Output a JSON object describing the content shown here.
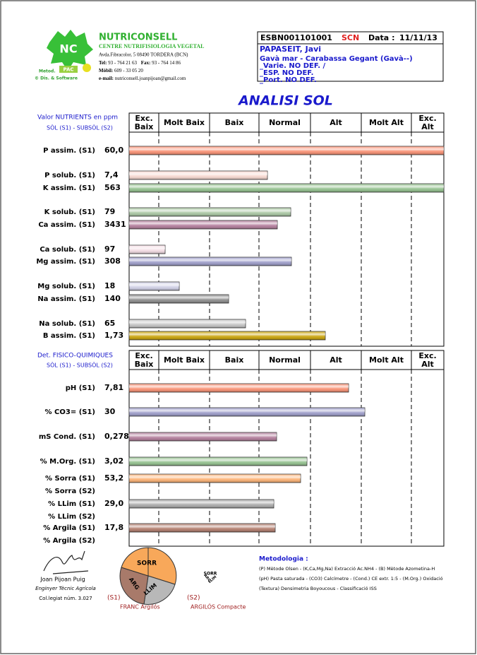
{
  "header": {
    "logo_mark": "NC",
    "logo_metod": "Metod.",
    "logo_pac": "PAC",
    "logo_copyright": "© Dis. & Software",
    "company": "NUTRICONSELL",
    "subtitle": "CENTRE NUTRIFISIOLOGIA VEGETAL",
    "address": "Avda.Fibracolor, 5  08490 TORDERA (BCN)",
    "tel_label": "Tel:",
    "tel": "93 - 764 21 63",
    "fax_label": "Fax:",
    "fax": "93 - 764 14 86",
    "mobile_label": "Mòbil:",
    "mobile": "609 - 33 05 20",
    "email_label": "e-mail:",
    "email": "nutriconsell.joanpijoan@gmail.com"
  },
  "report": {
    "code": "ESBN001101001",
    "scn": "SCN",
    "date_label": "Data :",
    "date": "11/11/13",
    "client": "PAPASEIT, Javi",
    "lines": [
      "Gavà mar - Carabassa Gegant (Gavà--)",
      "_Varie. NO DEF. /",
      "_ESP. NO DEF.",
      "_Port. NO DEF."
    ]
  },
  "title": "ANALISI SOL",
  "nutrients": {
    "heading": "Valor NUTRIENTS en ppm",
    "subheading": "SÒL (S1) - SUBSÒL (S2)",
    "columns": [
      [
        "Exc.",
        "Baix"
      ],
      [
        "Molt Baix"
      ],
      [
        "Baix"
      ],
      [
        "Normal"
      ],
      [
        "Alt"
      ],
      [
        "Molt Alt"
      ],
      [
        "Exc.",
        "Alt"
      ]
    ],
    "rows": [
      {
        "label": "P assim. (S1)",
        "value": "60,0"
      },
      {
        "label": "P solub. (S1)",
        "value": "7,4"
      },
      {
        "label": "K assim. (S1)",
        "value": "563"
      },
      {
        "label": "K solub. (S1)",
        "value": "79"
      },
      {
        "label": "Ca assim. (S1)",
        "value": "3431"
      },
      {
        "label": "Ca solub. (S1)",
        "value": "97"
      },
      {
        "label": "Mg assim. (S1)",
        "value": "308"
      },
      {
        "label": "Mg solub. (S1)",
        "value": "18"
      },
      {
        "label": "Na assim. (S1)",
        "value": "140"
      },
      {
        "label": "Na solub. (S1)",
        "value": "65"
      },
      {
        "label": "B assim. (S1)",
        "value": "1,73"
      }
    ]
  },
  "physchem": {
    "heading": "Det. FISICO-QUIMIQUES",
    "subheading": "SÒL (S1) - SUBSÒL (S2)",
    "columns": [
      [
        "Exc.",
        "Baix"
      ],
      [
        "Molt Baix"
      ],
      [
        "Baix"
      ],
      [
        "Normal"
      ],
      [
        "Alt"
      ],
      [
        "Molt Alt"
      ],
      [
        "Exc.",
        "Alt"
      ]
    ],
    "rows": [
      {
        "label": "pH  (S1)",
        "value": "7,81"
      },
      {
        "label": "% CO3= (S1)",
        "value": "30"
      },
      {
        "label": "mS Cond. (S1)",
        "value": "0,278"
      },
      {
        "label": "% M.Org. (S1)",
        "value": "3,02"
      },
      {
        "label": "% Sorra (S1)",
        "value": "53,2"
      },
      {
        "label": "% Sorra (S2)"
      },
      {
        "label": "% LLim (S1)",
        "value": "29,0"
      },
      {
        "label": "% LLim (S2)"
      },
      {
        "label": "% Argila (S1)",
        "value": "17,8"
      },
      {
        "label": "% Argila (S2)"
      }
    ]
  },
  "footer": {
    "signer": "Joan Pijoan Puig",
    "role": "Enginyer Tècnic Agrícola",
    "license": "Col.legiat núm. 3.027",
    "texture_labels": [
      "SORR",
      "ARG",
      "LLIM"
    ],
    "s1_tag": "(S1)",
    "s1_class": "FRANC Argilós",
    "s2_tag": "(S2)",
    "s2_class": "ARGILÓS Compacte",
    "method_title": "Metodologia :",
    "method_lines": [
      "(P) Mètode Olsen - (K,Ca,Mg,Na) Extracció Ac.NH4 - (B) Mètode Azometina-H",
      "(pH) Pasta saturada - (CO3) Calcímetre - (Cond.) CE extr. 1:5 - (M.Org.) Oxidació",
      "(Textura) Densimetria Boyoucous - Classificació ISS"
    ]
  }
}
